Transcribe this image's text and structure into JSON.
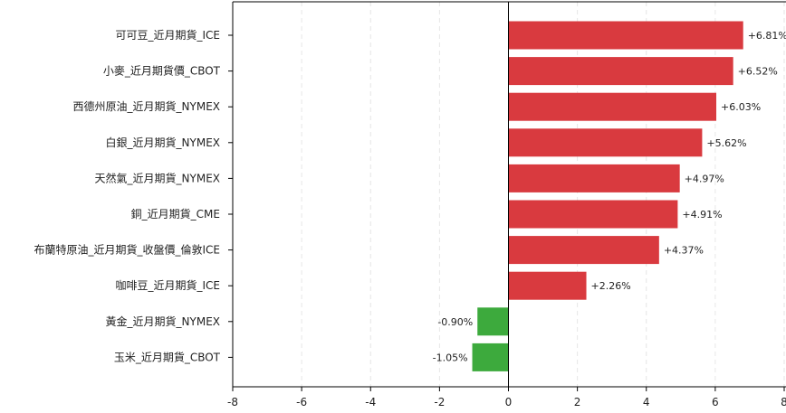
{
  "chart_data": {
    "type": "bar",
    "orientation": "horizontal",
    "categories": [
      "可可豆_近月期貨_ICE",
      "小麥_近月期貨價_CBOT",
      "西德州原油_近月期貨_NYMEX",
      "白銀_近月期貨_NYMEX",
      "天然氣_近月期貨_NYMEX",
      "銅_近月期貨_CME",
      "布蘭特原油_近月期貨_收盤價_倫敦ICE",
      "咖啡豆_近月期貨_ICE",
      "黃金_近月期貨_NYMEX",
      "玉米_近月期貨_CBOT"
    ],
    "values": [
      6.81,
      6.52,
      6.03,
      5.62,
      4.97,
      4.91,
      4.37,
      2.26,
      -0.9,
      -1.05
    ],
    "data_labels": [
      "+6.81%",
      "+6.52%",
      "+6.03%",
      "+5.62%",
      "+4.97%",
      "+4.91%",
      "+4.37%",
      "+2.26%",
      "-0.90%",
      "-1.05%"
    ],
    "xlim": [
      -8,
      8
    ],
    "xticks": [
      -8,
      -6,
      -4,
      -2,
      0,
      2,
      4,
      6,
      8
    ],
    "grid": "vertical dashed",
    "colors": {
      "positive": "#d93a3f",
      "negative": "#3daa3d"
    },
    "title": "",
    "xlabel": "",
    "ylabel": ""
  }
}
